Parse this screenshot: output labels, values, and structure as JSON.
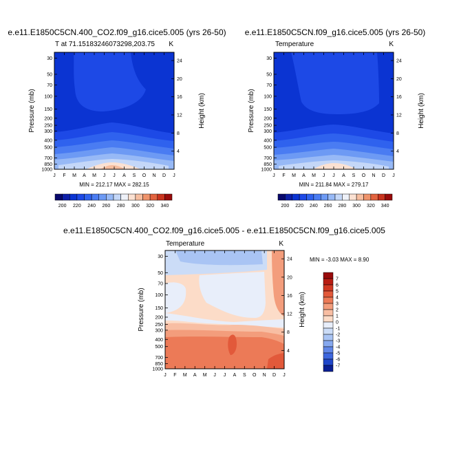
{
  "chart_data": [
    {
      "type": "contour",
      "title": "e.e11.E1850C5CN.400_CO2.f09_g16.cice5.005 (yrs 26-50)",
      "subtitle_left": "T at 71.15183246073298,203.75",
      "subtitle_right": "K",
      "ylabel": "Pressure (mb)",
      "y2label": "Height (km)",
      "x_ticks": [
        "J",
        "F",
        "M",
        "A",
        "M",
        "J",
        "J",
        "A",
        "S",
        "O",
        "N",
        "D",
        "J"
      ],
      "pressure_ticks": [
        "30",
        "50",
        "70",
        "100",
        "150",
        "200",
        "250",
        "300",
        "400",
        "500",
        "700",
        "850",
        "1000"
      ],
      "height_ticks": [
        "24",
        "20",
        "16",
        "12",
        "8",
        "4"
      ],
      "stats": "MIN = 212.17  MAX = 282.15",
      "min": 212.17,
      "max": 282.15,
      "colorbar": [
        "200",
        "220",
        "240",
        "260",
        "280",
        "300",
        "320",
        "340"
      ],
      "levels": [
        200,
        210,
        220,
        230,
        240,
        250,
        260,
        270,
        280,
        290,
        300,
        310,
        320,
        330,
        340
      ],
      "colors": [
        "#08086c",
        "#0d1fa8",
        "#0b34d2",
        "#1d49e6",
        "#2f62ee",
        "#4a7cf2",
        "#6d9af4",
        "#97b9f6",
        "#c4d7f8",
        "#eef1f8",
        "#fbe1d2",
        "#f6bea0",
        "#ef936b",
        "#e2633f",
        "#c9341e",
        "#990b0b"
      ]
    },
    {
      "type": "contour",
      "title": "e.e11.E1850C5CN.f09_g16.cice5.005 (yrs 26-50)",
      "subtitle_left": "Temperature",
      "subtitle_right": "K",
      "ylabel": "Pressure (mb)",
      "y2label": "Height (km)",
      "x_ticks": [
        "J",
        "F",
        "M",
        "A",
        "M",
        "J",
        "J",
        "A",
        "S",
        "O",
        "N",
        "D",
        "J"
      ],
      "pressure_ticks": [
        "30",
        "50",
        "70",
        "100",
        "150",
        "200",
        "250",
        "300",
        "400",
        "500",
        "700",
        "850",
        "1000"
      ],
      "height_ticks": [
        "24",
        "20",
        "16",
        "12",
        "8",
        "4"
      ],
      "stats": "MIN = 211.84  MAX = 279.17",
      "min": 211.84,
      "max": 279.17,
      "colorbar": [
        "200",
        "220",
        "240",
        "260",
        "280",
        "300",
        "320",
        "340"
      ]
    },
    {
      "type": "contour",
      "title": "e.e11.E1850C5CN.400_CO2.f09_g16.cice5.005 - e.e11.E1850C5CN.f09_g16.cice5.005",
      "subtitle_left": "Temperature",
      "subtitle_right": "K",
      "ylabel": "Pressure (mb)",
      "y2label": "Height (km)",
      "x_ticks": [
        "J",
        "F",
        "M",
        "A",
        "M",
        "J",
        "J",
        "A",
        "S",
        "O",
        "N",
        "D",
        "J"
      ],
      "pressure_ticks": [
        "30",
        "50",
        "70",
        "100",
        "150",
        "200",
        "250",
        "300",
        "400",
        "500",
        "700",
        "850",
        "1000"
      ],
      "height_ticks": [
        "24",
        "20",
        "16",
        "12",
        "8",
        "4"
      ],
      "stats": "MIN =  -3.03  MAX =   8.90",
      "min": -3.03,
      "max": 8.9,
      "colorbar": [
        "7",
        "6",
        "5",
        "4",
        "3",
        "2",
        "1",
        "0",
        "-1",
        "-2",
        "-3",
        "-4",
        "-5",
        "-6",
        "-7"
      ],
      "colors": [
        "#990b0b",
        "#b81d13",
        "#d03822",
        "#e2593a",
        "#ec7a57",
        "#f39d7c",
        "#f8bea3",
        "#fcdcc8",
        "#e8eefa",
        "#cbdcf7",
        "#a9c4f4",
        "#86a8ef",
        "#6187e8",
        "#3d66de",
        "#1f46c9",
        "#0a1f94"
      ]
    }
  ]
}
